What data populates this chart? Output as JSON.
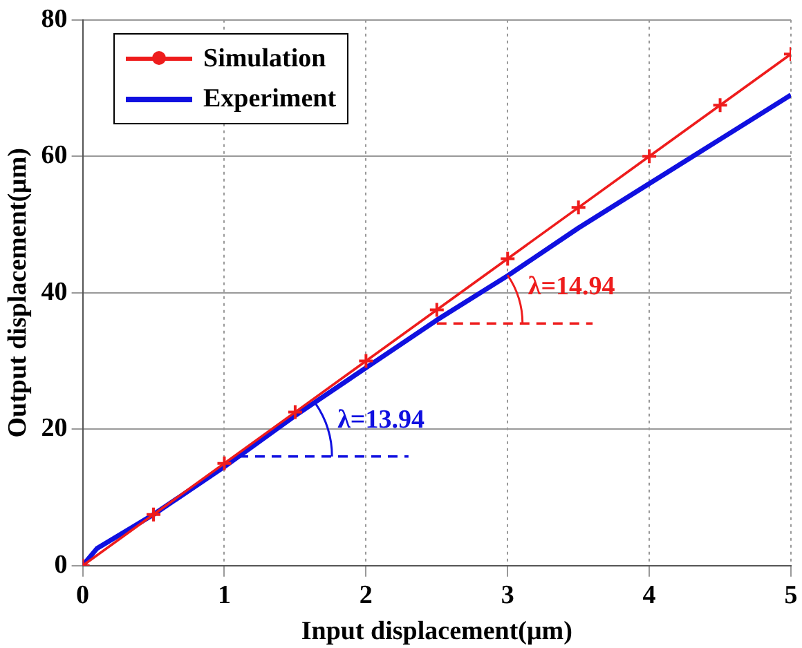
{
  "chart_data": {
    "type": "line",
    "xlabel": "Input displacement(μm)",
    "ylabel": "Output displacement(μm)",
    "xlim": [
      0,
      5
    ],
    "ylim": [
      0,
      80
    ],
    "xticks": [
      0,
      1,
      2,
      3,
      4,
      5
    ],
    "yticks": [
      0,
      20,
      40,
      60,
      80
    ],
    "grid": true,
    "legend": "top left",
    "series": [
      {
        "name": "Simulation",
        "color": "#ee1c1c",
        "marker": "cross",
        "x": [
          0,
          0.5,
          1,
          1.5,
          2,
          2.5,
          3,
          3.5,
          4,
          4.5,
          5
        ],
        "values": [
          0,
          7.5,
          15,
          22.5,
          30,
          37.5,
          45,
          52.5,
          60,
          67.5,
          75
        ]
      },
      {
        "name": "Experiment",
        "color": "#1010e0",
        "marker": "none",
        "x": [
          0,
          0.1,
          0.5,
          1,
          1.5,
          2,
          2.5,
          3,
          3.5,
          4,
          4.5,
          5
        ],
        "values": [
          0,
          2.5,
          7.5,
          14.5,
          22,
          29,
          36,
          42.5,
          49.5,
          56,
          62.5,
          69
        ]
      },
      {
        "color": "#ee1c1c",
        "marker": "none",
        "line_style": "dashed",
        "x": [
          2.5,
          3.6
        ],
        "values": [
          35.5,
          35.5
        ]
      },
      {
        "color": "#1010e0",
        "marker": "none",
        "line_style": "dashed",
        "x": [
          1.1,
          2.3
        ],
        "values": [
          16,
          16
        ]
      }
    ],
    "annotations": [
      "λ=14.94",
      "λ=13.94"
    ]
  }
}
